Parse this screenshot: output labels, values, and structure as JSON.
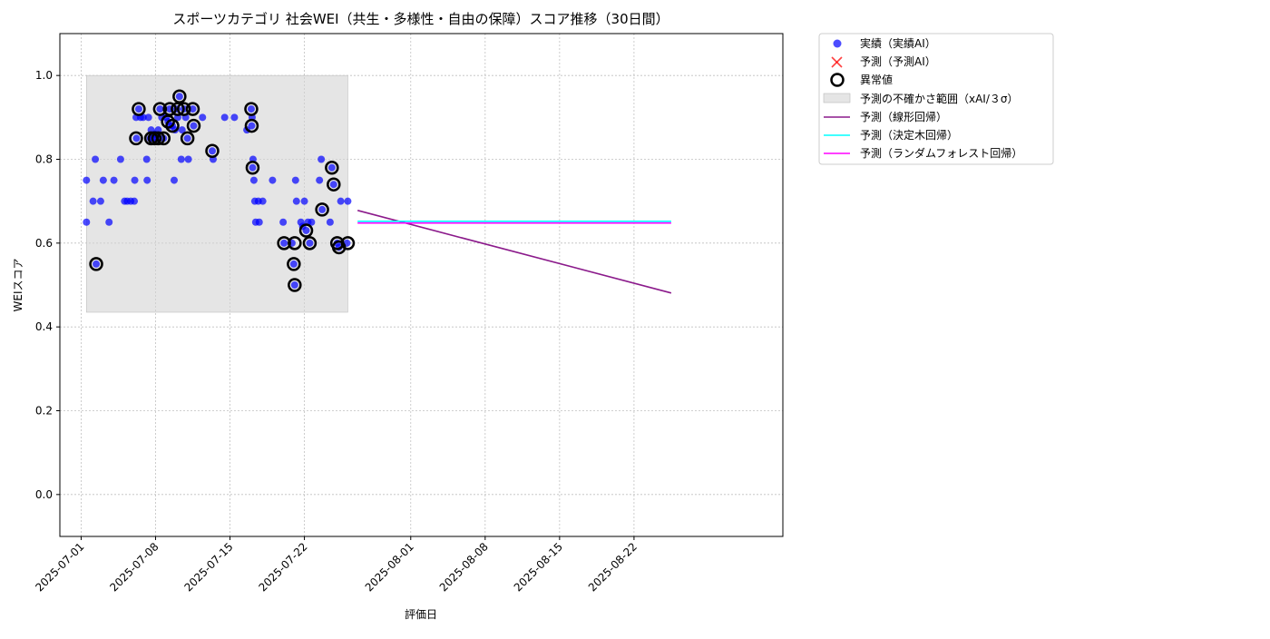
{
  "chart_data": {
    "type": "scatter",
    "title": "スポーツカテゴリ 社会WEI（共生・多様性・自由の保障）スコア推移（30日間）",
    "xlabel": "評価日",
    "ylabel": "WEIスコア",
    "xlim": [
      "2025-06-29",
      "2025-09-05"
    ],
    "ylim": [
      -0.1,
      1.1
    ],
    "x_ticks": [
      "2025-07-01",
      "2025-07-08",
      "2025-07-15",
      "2025-07-22",
      "2025-08-01",
      "2025-08-08",
      "2025-08-15",
      "2025-08-22"
    ],
    "y_ticks": [
      0.0,
      0.2,
      0.4,
      0.6,
      0.8,
      1.0
    ],
    "y_tick_labels": [
      "0.0",
      "0.2",
      "0.4",
      "0.6",
      "0.8",
      "1.0"
    ],
    "grid": true,
    "legend_position": "outside-top-right",
    "colors": {
      "actual": "#0000ff",
      "predicted": "#ff0000",
      "anomaly": "#000000",
      "band": "#d3d3d3",
      "linear": "#8b1a8b",
      "tree": "#00ffff",
      "forest": "#ff00ff"
    },
    "legend": {
      "actual": "実績（実績AI）",
      "predicted": "予測（予測AI）",
      "anomaly": "異常値",
      "band": "予測の不確かさ範囲（xAI/３σ）",
      "linear": "予測（線形回帰）",
      "tree": "予測（決定木回帰）",
      "forest": "予測（ランダムフォレスト回帰）"
    },
    "series": [
      {
        "kind": "actual",
        "points": [
          [
            "2025-07-01T12:00",
            0.75
          ],
          [
            "2025-07-01T12:00",
            0.65
          ],
          [
            "2025-07-02T03:00",
            0.7
          ],
          [
            "2025-07-02T08:00",
            0.8
          ],
          [
            "2025-07-02T10:00",
            0.55
          ],
          [
            "2025-07-02T20:00",
            0.7
          ],
          [
            "2025-07-03T02:00",
            0.75
          ],
          [
            "2025-07-03T15:00",
            0.65
          ],
          [
            "2025-07-04T02:00",
            0.75
          ],
          [
            "2025-07-04T17:00",
            0.8
          ],
          [
            "2025-07-05T02:00",
            0.7
          ],
          [
            "2025-07-05T08:00",
            0.7
          ],
          [
            "2025-07-05T16:00",
            0.7
          ],
          [
            "2025-07-06T00:00",
            0.7
          ],
          [
            "2025-07-06T01:00",
            0.75
          ],
          [
            "2025-07-06T04:00",
            0.9
          ],
          [
            "2025-07-06T05:00",
            0.85
          ],
          [
            "2025-07-06T10:00",
            0.92
          ],
          [
            "2025-07-06T14:00",
            0.9
          ],
          [
            "2025-07-06T20:00",
            0.9
          ],
          [
            "2025-07-07T04:00",
            0.8
          ],
          [
            "2025-07-07T05:00",
            0.75
          ],
          [
            "2025-07-07T08:00",
            0.9
          ],
          [
            "2025-07-07T12:00",
            0.85
          ],
          [
            "2025-07-07T14:00",
            0.87
          ],
          [
            "2025-07-07T18:00",
            0.85
          ],
          [
            "2025-07-07T22:00",
            0.86
          ],
          [
            "2025-07-08T02:00",
            0.85
          ],
          [
            "2025-07-08T06:00",
            0.87
          ],
          [
            "2025-07-08T10:00",
            0.92
          ],
          [
            "2025-07-08T14:00",
            0.9
          ],
          [
            "2025-07-08T18:00",
            0.85
          ],
          [
            "2025-07-09T00:00",
            0.9
          ],
          [
            "2025-07-09T04:00",
            0.89
          ],
          [
            "2025-07-09T08:00",
            0.92
          ],
          [
            "2025-07-09T10:00",
            0.88
          ],
          [
            "2025-07-09T14:00",
            0.88
          ],
          [
            "2025-07-09T18:00",
            0.75
          ],
          [
            "2025-07-09T20:00",
            0.87
          ],
          [
            "2025-07-10T00:00",
            0.92
          ],
          [
            "2025-07-10T02:00",
            0.9
          ],
          [
            "2025-07-10T06:00",
            0.95
          ],
          [
            "2025-07-10T10:00",
            0.8
          ],
          [
            "2025-07-10T12:00",
            0.87
          ],
          [
            "2025-07-10T16:00",
            0.92
          ],
          [
            "2025-07-10T20:00",
            0.9
          ],
          [
            "2025-07-11T00:00",
            0.85
          ],
          [
            "2025-07-11T02:00",
            0.8
          ],
          [
            "2025-07-11T12:00",
            0.92
          ],
          [
            "2025-07-11T14:00",
            0.88
          ],
          [
            "2025-07-12T10:00",
            0.9
          ],
          [
            "2025-07-13T08:00",
            0.82
          ],
          [
            "2025-07-13T10:00",
            0.8
          ],
          [
            "2025-07-14T12:00",
            0.9
          ],
          [
            "2025-07-15T10:00",
            0.9
          ],
          [
            "2025-07-16T14:00",
            0.87
          ],
          [
            "2025-07-17T00:00",
            0.92
          ],
          [
            "2025-07-17T01:00",
            0.88
          ],
          [
            "2025-07-17T02:00",
            0.9
          ],
          [
            "2025-07-17T03:00",
            0.78
          ],
          [
            "2025-07-17T04:00",
            0.8
          ],
          [
            "2025-07-17T06:00",
            0.75
          ],
          [
            "2025-07-17T08:00",
            0.7
          ],
          [
            "2025-07-17T10:00",
            0.65
          ],
          [
            "2025-07-17T16:00",
            0.7
          ],
          [
            "2025-07-17T18:00",
            0.65
          ],
          [
            "2025-07-18T02:00",
            0.7
          ],
          [
            "2025-07-19T00:00",
            0.75
          ],
          [
            "2025-07-20T00:00",
            0.65
          ],
          [
            "2025-07-20T02:00",
            0.6
          ],
          [
            "2025-07-20T20:00",
            0.6
          ],
          [
            "2025-07-21T00:00",
            0.55
          ],
          [
            "2025-07-21T02:00",
            0.5
          ],
          [
            "2025-07-21T04:00",
            0.75
          ],
          [
            "2025-07-21T06:00",
            0.7
          ],
          [
            "2025-07-21T16:00",
            0.65
          ],
          [
            "2025-07-21T20:00",
            0.64
          ],
          [
            "2025-07-22T00:00",
            0.7
          ],
          [
            "2025-07-22T04:00",
            0.63
          ],
          [
            "2025-07-22T08:00",
            0.65
          ],
          [
            "2025-07-22T12:00",
            0.6
          ],
          [
            "2025-07-22T16:00",
            0.65
          ],
          [
            "2025-07-23T10:00",
            0.75
          ],
          [
            "2025-07-23T14:00",
            0.8
          ],
          [
            "2025-07-23T16:00",
            0.68
          ],
          [
            "2025-07-24T10:00",
            0.65
          ],
          [
            "2025-07-24T14:00",
            0.78
          ],
          [
            "2025-07-24T18:00",
            0.74
          ],
          [
            "2025-07-25T02:00",
            0.6
          ],
          [
            "2025-07-25T06:00",
            0.59
          ],
          [
            "2025-07-25T10:00",
            0.7
          ],
          [
            "2025-07-26T00:00",
            0.6
          ],
          [
            "2025-07-26T02:00",
            0.7
          ]
        ]
      },
      {
        "kind": "anomaly",
        "points": [
          [
            "2025-07-02T10:00",
            0.55
          ],
          [
            "2025-07-06T04:00",
            0.85
          ],
          [
            "2025-07-06T10:00",
            0.92
          ],
          [
            "2025-07-07T14:00",
            0.85
          ],
          [
            "2025-07-07T22:00",
            0.85
          ],
          [
            "2025-07-08T06:00",
            0.85
          ],
          [
            "2025-07-08T10:00",
            0.92
          ],
          [
            "2025-07-08T18:00",
            0.85
          ],
          [
            "2025-07-09T04:00",
            0.89
          ],
          [
            "2025-07-09T08:00",
            0.92
          ],
          [
            "2025-07-09T14:00",
            0.88
          ],
          [
            "2025-07-10T02:00",
            0.92
          ],
          [
            "2025-07-10T06:00",
            0.95
          ],
          [
            "2025-07-10T16:00",
            0.92
          ],
          [
            "2025-07-11T00:00",
            0.85
          ],
          [
            "2025-07-11T12:00",
            0.92
          ],
          [
            "2025-07-11T14:00",
            0.88
          ],
          [
            "2025-07-13T08:00",
            0.82
          ],
          [
            "2025-07-17T00:00",
            0.92
          ],
          [
            "2025-07-17T01:00",
            0.88
          ],
          [
            "2025-07-17T03:00",
            0.78
          ],
          [
            "2025-07-20T02:00",
            0.6
          ],
          [
            "2025-07-21T00:00",
            0.55
          ],
          [
            "2025-07-21T02:00",
            0.5
          ],
          [
            "2025-07-21T02:00",
            0.6
          ],
          [
            "2025-07-22T04:00",
            0.63
          ],
          [
            "2025-07-22T12:00",
            0.6
          ],
          [
            "2025-07-23T16:00",
            0.68
          ],
          [
            "2025-07-24T14:00",
            0.78
          ],
          [
            "2025-07-24T18:00",
            0.74
          ],
          [
            "2025-07-25T02:00",
            0.6
          ],
          [
            "2025-07-25T06:00",
            0.59
          ],
          [
            "2025-07-26T02:00",
            0.6
          ]
        ]
      },
      {
        "kind": "band",
        "x": [
          "2025-07-01T12:00",
          "2025-07-26T02:00"
        ],
        "y": [
          0.435,
          1.0
        ]
      },
      {
        "kind": "linear",
        "points": [
          [
            "2025-07-27T00:00",
            0.678
          ],
          [
            "2025-08-25T12:00",
            0.481
          ]
        ]
      },
      {
        "kind": "tree",
        "points": [
          [
            "2025-07-27T00:00",
            0.652
          ],
          [
            "2025-08-25T12:00",
            0.652
          ]
        ]
      },
      {
        "kind": "forest",
        "points": [
          [
            "2025-07-27T00:00",
            0.648
          ],
          [
            "2025-08-25T12:00",
            0.648
          ]
        ]
      }
    ]
  }
}
